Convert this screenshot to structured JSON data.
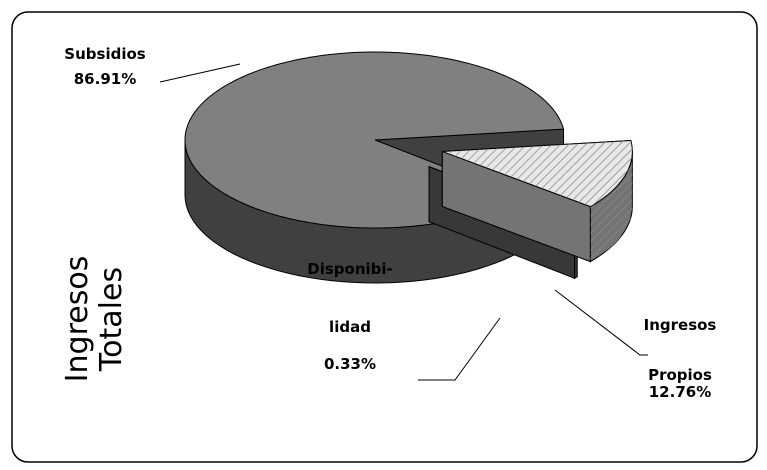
{
  "chart_data": {
    "type": "pie3d",
    "title": "Ingresos Totales",
    "categories": [
      "Subsidios",
      "Ingresos Propios",
      "Disponibi-lidad"
    ],
    "values": [
      86.91,
      12.76,
      0.33
    ],
    "value_labels": [
      "86.91%",
      "12.76%",
      "0.33%"
    ],
    "colors": [
      "#808080",
      "#e8e8e8",
      "#707070"
    ]
  }
}
